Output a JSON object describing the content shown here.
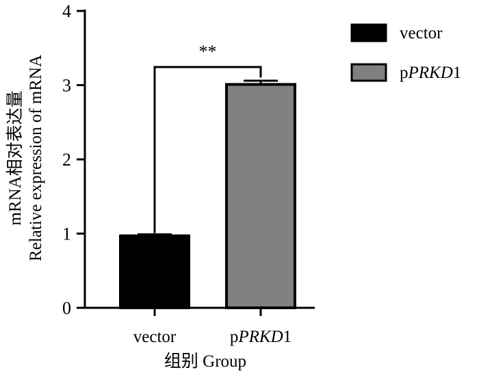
{
  "chart_data": {
    "type": "bar",
    "categories": [
      {
        "pre": "vector",
        "ital": "",
        "post": ""
      },
      {
        "pre": "p",
        "ital": "PRKD",
        "post": "1"
      }
    ],
    "values": [
      0.97,
      3.01
    ],
    "errors": [
      0.02,
      0.05
    ],
    "ylim": [
      0,
      4
    ],
    "yticks": [
      "0",
      "1",
      "2",
      "3",
      "4"
    ],
    "ylabel": [
      "mRNA相对表达量",
      "Relative expression of mRNA"
    ],
    "xlabel": "组别 Group",
    "significance": "**",
    "legend": {
      "position": "top-right",
      "entries": [
        {
          "pre": "vector",
          "ital": "",
          "post": ""
        },
        {
          "pre": "p",
          "ital": "PRKD",
          "post": "1"
        }
      ]
    },
    "colors": [
      "#000000",
      "#808080"
    ]
  }
}
